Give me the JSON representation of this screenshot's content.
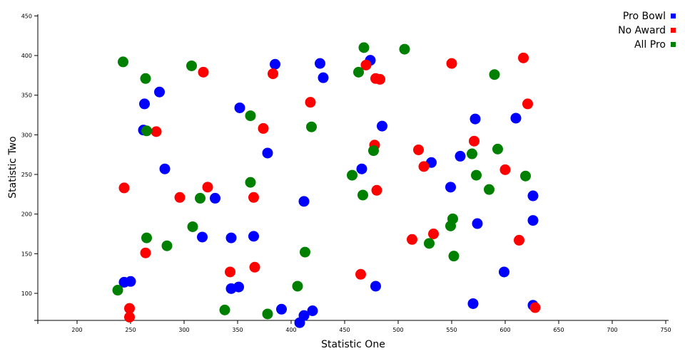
{
  "chart_data": {
    "type": "scatter",
    "xlabel": "Statistic One",
    "ylabel": "Statistic Two",
    "xlim": [
      165,
      750
    ],
    "ylim": [
      65,
      450
    ],
    "xticks": [
      200,
      250,
      300,
      350,
      400,
      450,
      500,
      550,
      600,
      650,
      700,
      750
    ],
    "yticks": [
      100,
      150,
      200,
      250,
      300,
      350,
      400,
      450
    ],
    "grid": false,
    "legend_position": "top-right",
    "series": [
      {
        "name": "Pro Bowl",
        "color": "#0000ff",
        "points": [
          [
            263,
            339
          ],
          [
            262,
            306
          ],
          [
            277,
            354
          ],
          [
            282,
            257
          ],
          [
            329,
            220
          ],
          [
            317,
            171
          ],
          [
            344,
            170
          ],
          [
            365,
            172
          ],
          [
            344,
            106
          ],
          [
            351,
            108
          ],
          [
            385,
            389
          ],
          [
            352,
            334
          ],
          [
            378,
            277
          ],
          [
            412,
            216
          ],
          [
            427,
            390
          ],
          [
            430,
            372
          ],
          [
            391,
            80
          ],
          [
            408,
            63
          ],
          [
            412,
            72
          ],
          [
            420,
            78
          ],
          [
            474,
            394
          ],
          [
            466,
            257
          ],
          [
            485,
            311
          ],
          [
            479,
            109
          ],
          [
            531,
            265
          ],
          [
            549,
            234
          ],
          [
            558,
            273
          ],
          [
            572,
            320
          ],
          [
            574,
            188
          ],
          [
            570,
            87
          ],
          [
            599,
            127
          ],
          [
            610,
            321
          ],
          [
            626,
            223
          ],
          [
            626,
            192
          ],
          [
            626,
            85
          ],
          [
            244,
            114
          ],
          [
            250,
            115
          ]
        ]
      },
      {
        "name": "No Award",
        "color": "#ff0000",
        "points": [
          [
            244,
            233
          ],
          [
            264,
            151
          ],
          [
            274,
            304
          ],
          [
            296,
            221
          ],
          [
            318,
            379
          ],
          [
            322,
            234
          ],
          [
            343,
            127
          ],
          [
            365,
            221
          ],
          [
            366,
            133
          ],
          [
            374,
            308
          ],
          [
            383,
            377
          ],
          [
            418,
            341
          ],
          [
            470,
            388
          ],
          [
            478,
            287
          ],
          [
            479,
            371
          ],
          [
            483,
            370
          ],
          [
            480,
            230
          ],
          [
            465,
            124
          ],
          [
            513,
            168
          ],
          [
            519,
            281
          ],
          [
            524,
            260
          ],
          [
            533,
            175
          ],
          [
            550,
            390
          ],
          [
            571,
            292
          ],
          [
            600,
            256
          ],
          [
            613,
            167
          ],
          [
            617,
            397
          ],
          [
            621,
            339
          ],
          [
            628,
            82
          ],
          [
            249,
            81
          ],
          [
            249,
            70
          ]
        ]
      },
      {
        "name": "All Pro",
        "color": "#008000",
        "points": [
          [
            243,
            392
          ],
          [
            264,
            371
          ],
          [
            265,
            305
          ],
          [
            265,
            170
          ],
          [
            284,
            160
          ],
          [
            307,
            387
          ],
          [
            308,
            184
          ],
          [
            315,
            220
          ],
          [
            338,
            79
          ],
          [
            362,
            324
          ],
          [
            362,
            240
          ],
          [
            378,
            74
          ],
          [
            406,
            109
          ],
          [
            413,
            152
          ],
          [
            419,
            310
          ],
          [
            457,
            249
          ],
          [
            463,
            379
          ],
          [
            467,
            224
          ],
          [
            468,
            410
          ],
          [
            477,
            280
          ],
          [
            506,
            408
          ],
          [
            529,
            163
          ],
          [
            549,
            185
          ],
          [
            551,
            194
          ],
          [
            552,
            147
          ],
          [
            569,
            276
          ],
          [
            573,
            249
          ],
          [
            585,
            231
          ],
          [
            590,
            376
          ],
          [
            593,
            282
          ],
          [
            619,
            248
          ],
          [
            238,
            104
          ]
        ]
      }
    ]
  }
}
